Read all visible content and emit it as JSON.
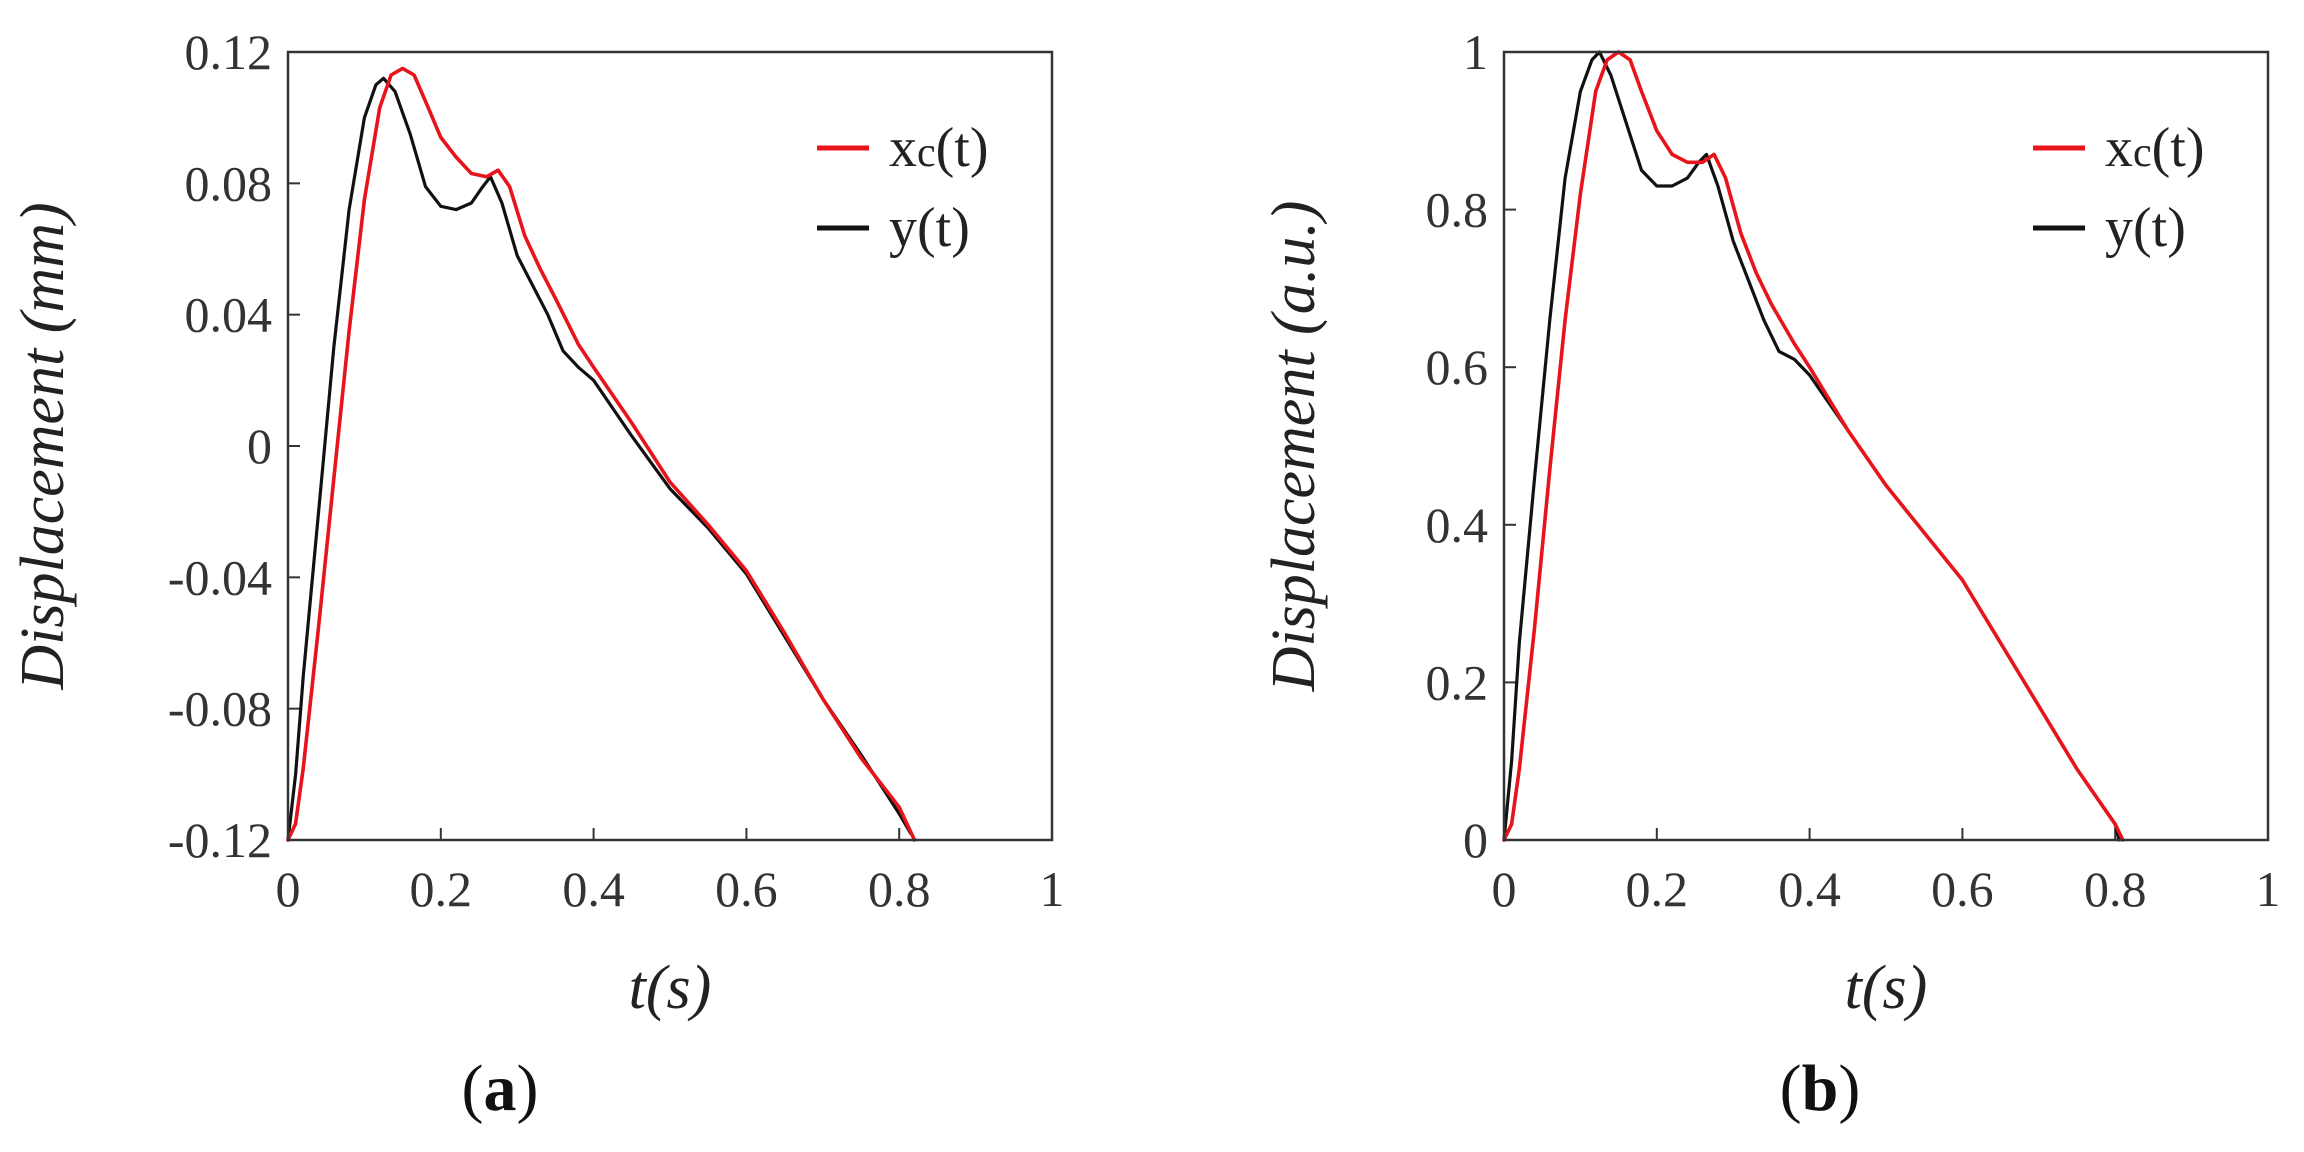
{
  "chart_data": [
    {
      "type": "line",
      "panel_label": {
        "open": "(",
        "letter": "a",
        "close": ")"
      },
      "xlabel": "t(s)",
      "ylabel": "Displacement (mm)",
      "xlim": [
        0,
        1
      ],
      "ylim": [
        -0.12,
        0.12
      ],
      "xticks": [
        0,
        0.2,
        0.4,
        0.6,
        0.8,
        1
      ],
      "xtick_labels": [
        "0",
        "0.2",
        "0.4",
        "0.6",
        "0.8",
        "1"
      ],
      "yticks": [
        -0.12,
        -0.08,
        -0.04,
        0,
        0.04,
        0.08,
        0.12
      ],
      "ytick_labels": [
        "-0.12",
        "-0.08",
        "-0.04",
        "0",
        "0.04",
        "0.08",
        "0.12"
      ],
      "legend": {
        "position": "top-right"
      },
      "series": [
        {
          "name": "xc(t)",
          "name_main": "x",
          "name_sub": "c",
          "name_tail": "(t)",
          "color": "#e8141b",
          "x": [
            0,
            0.01,
            0.02,
            0.04,
            0.06,
            0.08,
            0.1,
            0.12,
            0.135,
            0.15,
            0.165,
            0.18,
            0.2,
            0.22,
            0.24,
            0.26,
            0.275,
            0.29,
            0.31,
            0.33,
            0.35,
            0.38,
            0.4,
            0.45,
            0.5,
            0.55,
            0.6,
            0.65,
            0.7,
            0.75,
            0.8,
            0.82
          ],
          "y": [
            -0.12,
            -0.115,
            -0.098,
            -0.055,
            -0.01,
            0.035,
            0.075,
            0.103,
            0.113,
            0.115,
            0.113,
            0.105,
            0.094,
            0.088,
            0.083,
            0.082,
            0.084,
            0.079,
            0.064,
            0.054,
            0.045,
            0.031,
            0.024,
            0.007,
            -0.011,
            -0.024,
            -0.038,
            -0.057,
            -0.077,
            -0.095,
            -0.11,
            -0.12
          ]
        },
        {
          "name": "y(t)",
          "name_main": "y(t)",
          "name_sub": "",
          "name_tail": "",
          "color": "#111111",
          "x": [
            0,
            0.01,
            0.02,
            0.04,
            0.06,
            0.08,
            0.1,
            0.115,
            0.125,
            0.14,
            0.16,
            0.18,
            0.2,
            0.22,
            0.24,
            0.255,
            0.265,
            0.28,
            0.3,
            0.32,
            0.34,
            0.36,
            0.38,
            0.4,
            0.45,
            0.5,
            0.55,
            0.6,
            0.65,
            0.7,
            0.75,
            0.8,
            0.815
          ],
          "y": [
            -0.12,
            -0.1,
            -0.07,
            -0.02,
            0.03,
            0.072,
            0.1,
            0.11,
            0.112,
            0.108,
            0.095,
            0.079,
            0.073,
            0.072,
            0.074,
            0.079,
            0.082,
            0.074,
            0.058,
            0.049,
            0.04,
            0.029,
            0.024,
            0.02,
            0.003,
            -0.013,
            -0.025,
            -0.039,
            -0.058,
            -0.077,
            -0.094,
            -0.112,
            -0.118
          ]
        }
      ]
    },
    {
      "type": "line",
      "panel_label": {
        "open": "(",
        "letter": "b",
        "close": ")"
      },
      "xlabel": "t(s)",
      "ylabel": "Displacement (a.u.)",
      "xlim": [
        0,
        1
      ],
      "ylim": [
        0,
        1
      ],
      "xticks": [
        0,
        0.2,
        0.4,
        0.6,
        0.8,
        1
      ],
      "xtick_labels": [
        "0",
        "0.2",
        "0.4",
        "0.6",
        "0.8",
        "1"
      ],
      "yticks": [
        0,
        0.2,
        0.4,
        0.6,
        0.8,
        1
      ],
      "ytick_labels": [
        "0",
        "0.2",
        "0.4",
        "0.6",
        "0.8",
        "1"
      ],
      "legend": {
        "position": "top-right"
      },
      "series": [
        {
          "name": "xc(t)",
          "name_main": "x",
          "name_sub": "c",
          "name_tail": "(t)",
          "color": "#e8141b",
          "x": [
            0,
            0.01,
            0.02,
            0.04,
            0.06,
            0.08,
            0.1,
            0.12,
            0.135,
            0.15,
            0.165,
            0.18,
            0.2,
            0.22,
            0.24,
            0.26,
            0.275,
            0.29,
            0.31,
            0.33,
            0.35,
            0.38,
            0.4,
            0.45,
            0.5,
            0.55,
            0.6,
            0.65,
            0.7,
            0.75,
            0.8,
            0.81
          ],
          "y": [
            0,
            0.02,
            0.09,
            0.27,
            0.47,
            0.66,
            0.82,
            0.95,
            0.99,
            1.0,
            0.99,
            0.95,
            0.9,
            0.87,
            0.86,
            0.86,
            0.87,
            0.84,
            0.77,
            0.72,
            0.68,
            0.63,
            0.6,
            0.52,
            0.45,
            0.39,
            0.33,
            0.25,
            0.17,
            0.09,
            0.02,
            0.0
          ]
        },
        {
          "name": "y(t)",
          "name_main": "y(t)",
          "name_sub": "",
          "name_tail": "",
          "color": "#111111",
          "x": [
            0,
            0.01,
            0.02,
            0.04,
            0.06,
            0.08,
            0.1,
            0.115,
            0.125,
            0.14,
            0.16,
            0.18,
            0.2,
            0.22,
            0.24,
            0.255,
            0.265,
            0.28,
            0.3,
            0.32,
            0.34,
            0.36,
            0.38,
            0.4,
            0.45,
            0.5,
            0.55,
            0.6,
            0.65,
            0.7,
            0.75,
            0.8,
            0.805
          ],
          "y": [
            0,
            0.1,
            0.25,
            0.46,
            0.66,
            0.84,
            0.95,
            0.99,
            1.0,
            0.97,
            0.91,
            0.85,
            0.83,
            0.83,
            0.84,
            0.86,
            0.87,
            0.83,
            0.76,
            0.71,
            0.66,
            0.62,
            0.61,
            0.59,
            0.52,
            0.45,
            0.39,
            0.33,
            0.25,
            0.17,
            0.09,
            0.02,
            0.0
          ]
        }
      ]
    }
  ]
}
